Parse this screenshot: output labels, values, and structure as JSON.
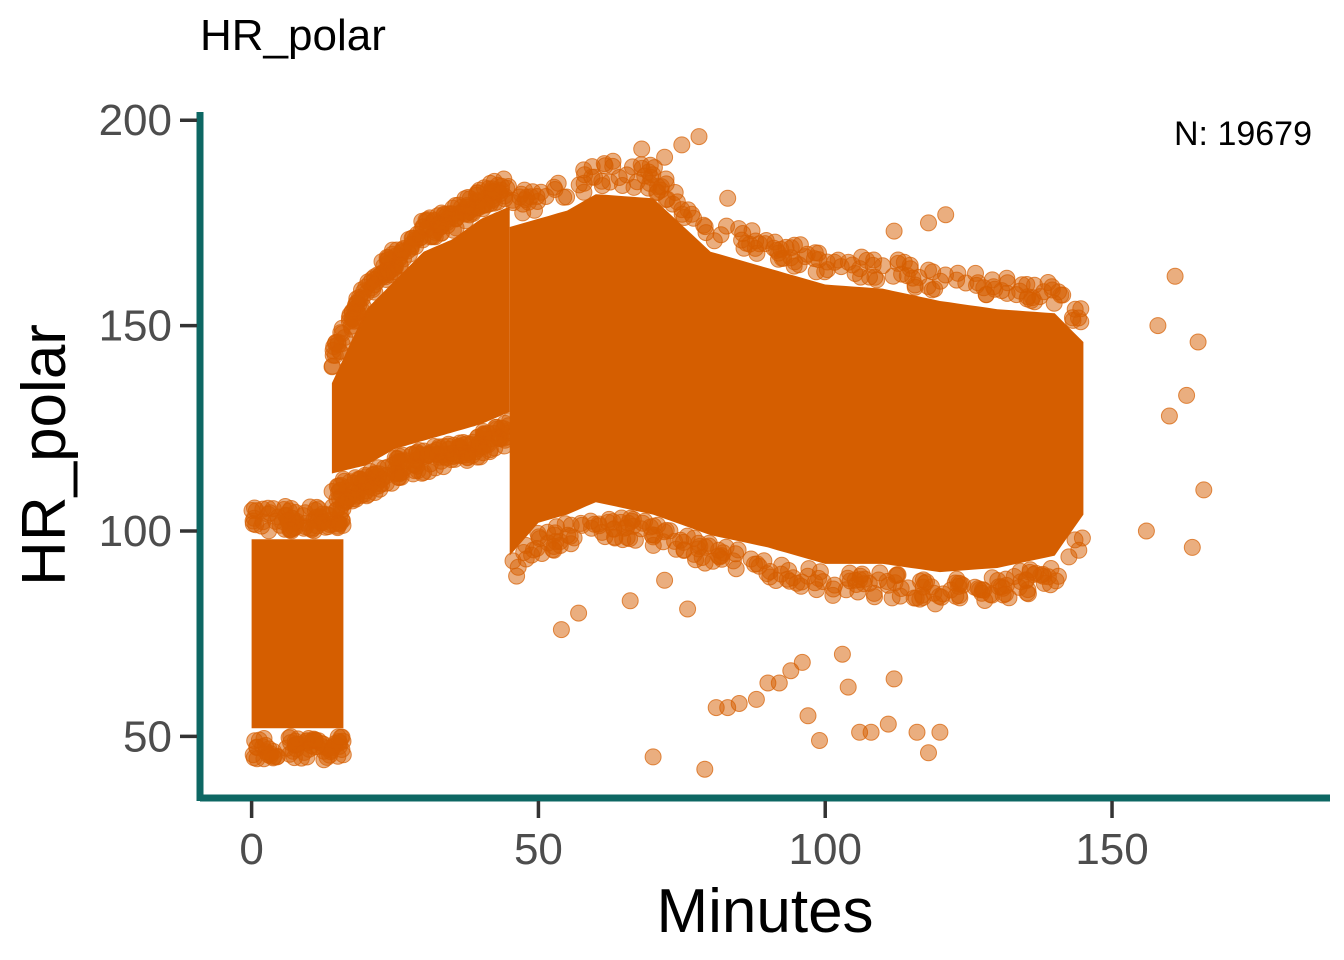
{
  "chart_data": {
    "type": "scatter",
    "title": "HR_polar",
    "xlabel": "Minutes",
    "ylabel": "HR_polar",
    "annotation": "N: 19679",
    "xlim": [
      -9,
      188
    ],
    "ylim": [
      35,
      202
    ],
    "x_ticks": [
      0,
      50,
      100,
      150
    ],
    "x_tick_labels": [
      "0",
      "50",
      "100",
      "150"
    ],
    "y_ticks": [
      50,
      100,
      150,
      200
    ],
    "y_tick_labels": [
      "50",
      "100",
      "150",
      "200"
    ],
    "grid": false,
    "legend": "none",
    "point_color": "#D55E00",
    "axis_color": "#0D6763",
    "point_count": 19679,
    "density_regions": [
      {
        "x": [
          0,
          16
        ],
        "y_low": [
          48,
          48
        ],
        "y_high": [
          102,
          102
        ]
      },
      {
        "x": [
          14,
          20,
          25,
          30,
          35,
          40,
          45
        ],
        "y_low": [
          110,
          112,
          116,
          118,
          120,
          122,
          125
        ],
        "y_high": [
          140,
          158,
          165,
          172,
          175,
          180,
          183
        ]
      },
      {
        "x": [
          45,
          50,
          55,
          60,
          70,
          80,
          90,
          100,
          110,
          120,
          130,
          140,
          145
        ],
        "y_low": [
          90,
          98,
          100,
          103,
          100,
          95,
          92,
          88,
          88,
          86,
          87,
          90,
          100
        ],
        "y_high": [
          178,
          180,
          182,
          186,
          185,
          172,
          168,
          164,
          163,
          160,
          158,
          157,
          150
        ]
      }
    ],
    "outlier_points": [
      {
        "x": 70,
        "y": 45
      },
      {
        "x": 79,
        "y": 42
      },
      {
        "x": 81,
        "y": 57
      },
      {
        "x": 83,
        "y": 57
      },
      {
        "x": 85,
        "y": 58
      },
      {
        "x": 88,
        "y": 59
      },
      {
        "x": 90,
        "y": 63
      },
      {
        "x": 92,
        "y": 63
      },
      {
        "x": 94,
        "y": 66
      },
      {
        "x": 96,
        "y": 68
      },
      {
        "x": 97,
        "y": 55
      },
      {
        "x": 99,
        "y": 49
      },
      {
        "x": 103,
        "y": 70
      },
      {
        "x": 104,
        "y": 62
      },
      {
        "x": 106,
        "y": 51
      },
      {
        "x": 108,
        "y": 51
      },
      {
        "x": 111,
        "y": 53
      },
      {
        "x": 112,
        "y": 64
      },
      {
        "x": 116,
        "y": 51
      },
      {
        "x": 118,
        "y": 46
      },
      {
        "x": 120,
        "y": 51
      },
      {
        "x": 54,
        "y": 76
      },
      {
        "x": 57,
        "y": 80
      },
      {
        "x": 66,
        "y": 83
      },
      {
        "x": 72,
        "y": 88
      },
      {
        "x": 76,
        "y": 81
      },
      {
        "x": 158,
        "y": 150
      },
      {
        "x": 161,
        "y": 162
      },
      {
        "x": 163,
        "y": 133
      },
      {
        "x": 165,
        "y": 146
      },
      {
        "x": 166,
        "y": 110
      },
      {
        "x": 164,
        "y": 96
      },
      {
        "x": 160,
        "y": 128
      },
      {
        "x": 156,
        "y": 100
      },
      {
        "x": 78,
        "y": 196
      },
      {
        "x": 75,
        "y": 194
      },
      {
        "x": 72,
        "y": 191
      },
      {
        "x": 68,
        "y": 193
      },
      {
        "x": 121,
        "y": 177
      },
      {
        "x": 118,
        "y": 175
      },
      {
        "x": 112,
        "y": 173
      },
      {
        "x": 83,
        "y": 181
      },
      {
        "x": 63,
        "y": 190
      }
    ]
  }
}
